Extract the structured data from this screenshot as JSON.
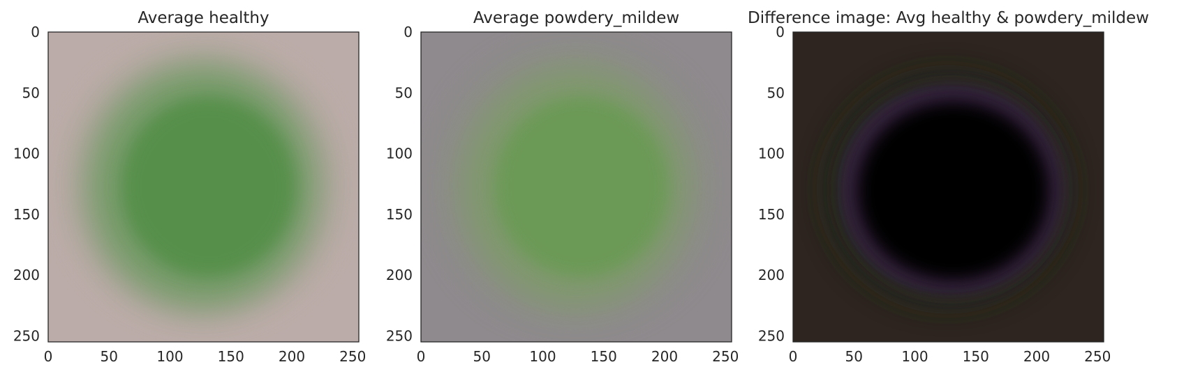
{
  "figure": {
    "panels": [
      {
        "title": "Average healthy",
        "kind": "leaf-average",
        "colors": {
          "background": "#bcaca9",
          "leaf_core": "#548f4a",
          "leaf_mid": "#6f9a63",
          "leaf_edge": "#a8a496"
        }
      },
      {
        "title": "Average powdery_mildew",
        "kind": "leaf-average",
        "colors": {
          "background": "#8e8a8d",
          "leaf_core": "#6a9a54",
          "leaf_mid": "#7f9a6c",
          "leaf_edge": "#8c8e84"
        }
      },
      {
        "title": "Difference image: Avg healthy & powdery_mildew",
        "kind": "difference",
        "colors": {
          "background": "#2e2520",
          "dark_core": "#050306",
          "purple_ring": "#3a2347",
          "green_tint": "#1f2a17"
        }
      }
    ]
  },
  "chart_data": {
    "type": "heatmap",
    "description_type": "image-panels",
    "image_extent": {
      "x": [
        0,
        255
      ],
      "y": [
        0,
        255
      ]
    },
    "xlim": [
      0,
      255
    ],
    "ylim": [
      255,
      0
    ],
    "x_ticks": [
      0,
      50,
      100,
      150,
      200,
      250
    ],
    "y_ticks": [
      0,
      50,
      100,
      150,
      200,
      250
    ],
    "x_tick_labels": [
      "0",
      "50",
      "100",
      "150",
      "200",
      "250"
    ],
    "y_tick_labels": [
      "0",
      "50",
      "100",
      "150",
      "200",
      "250"
    ],
    "panel_titles": [
      "Average healthy",
      "Average powdery_mildew",
      "Difference image: Avg healthy & powdery_mildew"
    ],
    "grid": false,
    "legend": "none"
  }
}
